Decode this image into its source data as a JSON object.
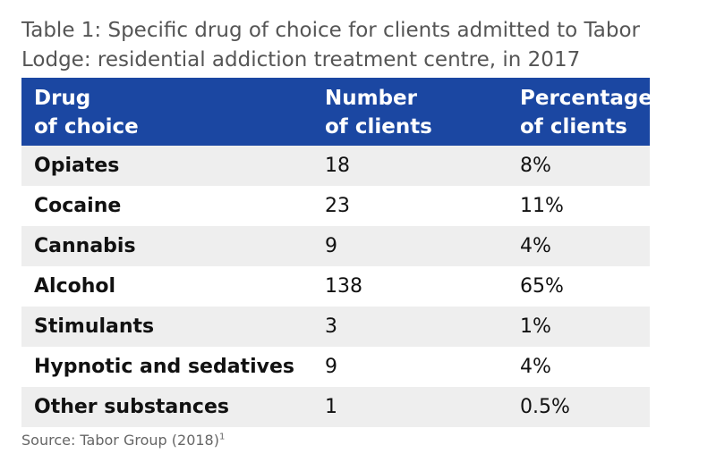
{
  "caption": {
    "line1": "Table 1: Specific drug of choice for clients admitted to Tabor",
    "line2": "Lodge: residential addiction treatment centre, in 2017"
  },
  "table": {
    "headers": [
      {
        "line1": "Drug",
        "line2": "of choice"
      },
      {
        "line1": "Number",
        "line2": "of clients"
      },
      {
        "line1": "Percentage",
        "line2": "of clients"
      }
    ],
    "rows": [
      {
        "drug": "Opiates",
        "number": "18",
        "percentage": "8%"
      },
      {
        "drug": "Cocaine",
        "number": "23",
        "percentage": "11%"
      },
      {
        "drug": "Cannabis",
        "number": "9",
        "percentage": "4%"
      },
      {
        "drug": "Alcohol",
        "number": "138",
        "percentage": "65%"
      },
      {
        "drug": "Stimulants",
        "number": "3",
        "percentage": "1%"
      },
      {
        "drug": "Hypnotic and sedatives",
        "number": "9",
        "percentage": "4%"
      },
      {
        "drug": "Other substances",
        "number": "1",
        "percentage": "0.5%"
      }
    ]
  },
  "source": {
    "text": "Source: Tabor Group (2018)",
    "footnote": "1"
  },
  "colors": {
    "header_bg": "#1b47a2",
    "header_text": "#ffffff",
    "stripe_bg": "#eeeeee",
    "caption_text": "#555555"
  }
}
